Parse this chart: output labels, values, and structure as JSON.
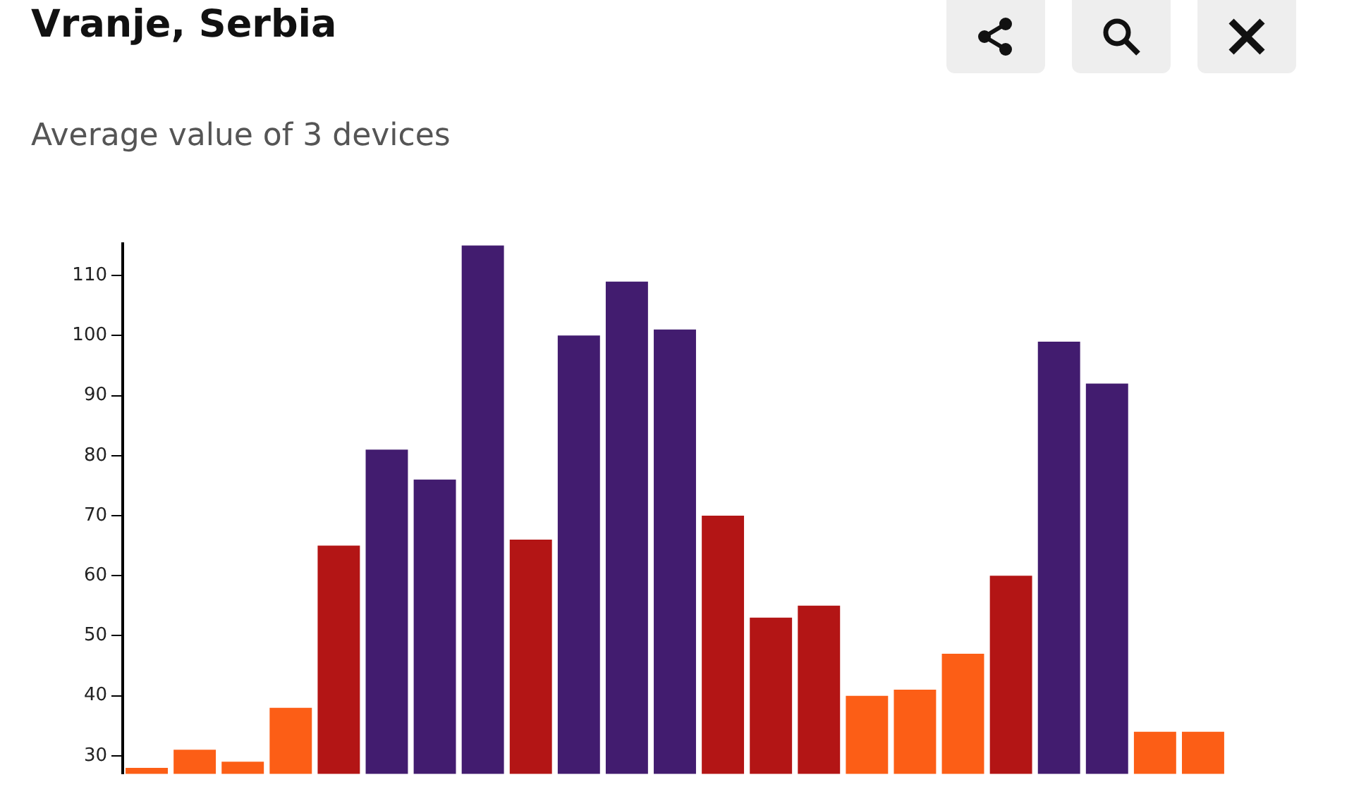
{
  "chart_data": {
    "type": "bar",
    "title": "Vranje, Serbia",
    "subtitle": "Average value of 3 devices",
    "categories": [
      null,
      null,
      null,
      null,
      null,
      null,
      null,
      null,
      null,
      null,
      null,
      null,
      null,
      null,
      null,
      null,
      null,
      null,
      null,
      null,
      null,
      null,
      null
    ],
    "values": [
      28,
      31,
      29,
      38,
      65,
      81,
      76,
      115,
      66,
      100,
      109,
      101,
      70,
      53,
      55,
      40,
      41,
      47,
      60,
      99,
      92,
      34,
      34
    ],
    "colors": [
      "#fc5e16",
      "#fc5e16",
      "#fc5e16",
      "#fc5e16",
      "#b31515",
      "#421c6f",
      "#421c6f",
      "#421c6f",
      "#b31515",
      "#421c6f",
      "#421c6f",
      "#421c6f",
      "#b31515",
      "#b31515",
      "#b31515",
      "#fc5e16",
      "#fc5e16",
      "#fc5e16",
      "#b31515",
      "#421c6f",
      "#421c6f",
      "#fc5e16",
      "#fc5e16"
    ],
    "ylim": [
      27,
      115.3
    ],
    "yticks": [
      30,
      40,
      50,
      60,
      70,
      80,
      90,
      100,
      110
    ],
    "grid": false,
    "tick_labels": "y"
  }
}
